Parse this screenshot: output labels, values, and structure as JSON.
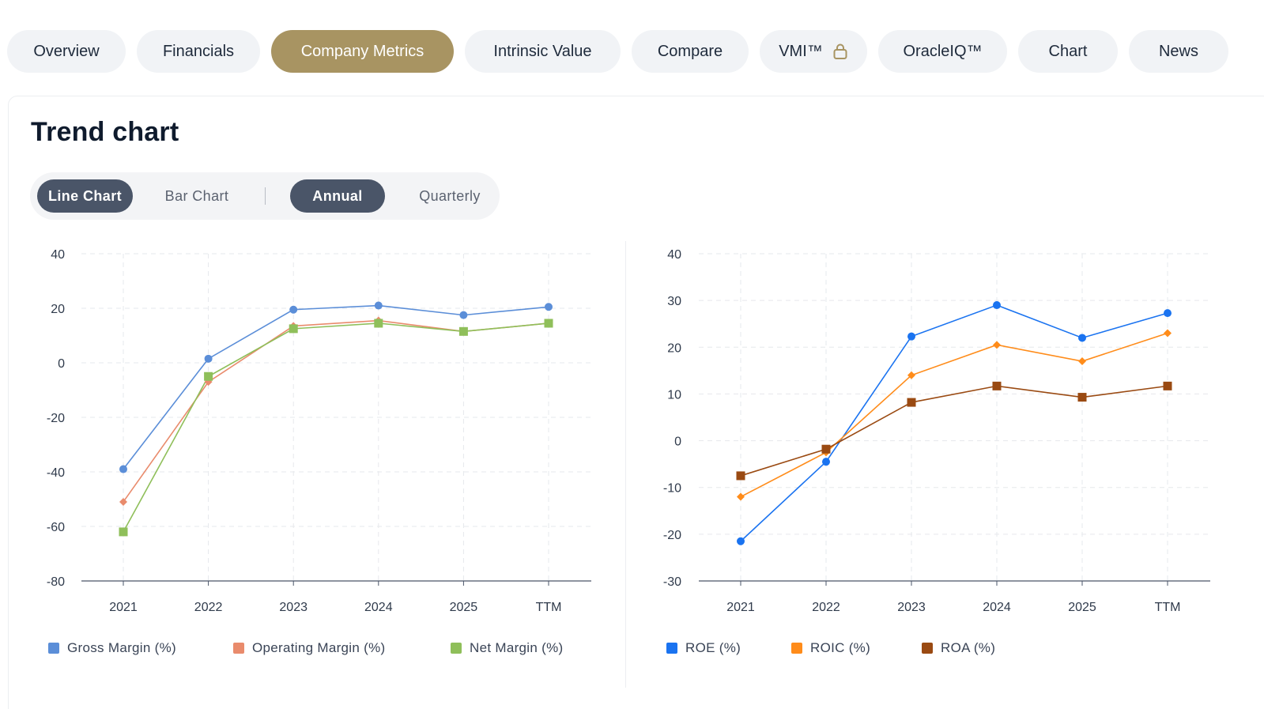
{
  "tabs": [
    {
      "label": "Overview",
      "active": false
    },
    {
      "label": "Financials",
      "active": false
    },
    {
      "label": "Company Metrics",
      "active": true
    },
    {
      "label": "Intrinsic Value",
      "active": false
    },
    {
      "label": "Compare",
      "active": false
    },
    {
      "label": "VMI™",
      "active": false,
      "icon": "lock-icon"
    },
    {
      "label": "OracleIQ™",
      "active": false
    },
    {
      "label": "Chart",
      "active": false
    },
    {
      "label": "News",
      "active": false
    }
  ],
  "section": {
    "title": "Trend chart"
  },
  "toggle": {
    "line_chart": "Line Chart",
    "bar_chart": "Bar Chart",
    "annual": "Annual",
    "quarterly": "Quarterly"
  },
  "colors": {
    "accent": "#a89462",
    "toggle_active": "#4a5568"
  },
  "chart_data": [
    {
      "type": "line",
      "x": [
        "2021",
        "2022",
        "2023",
        "2024",
        "2025",
        "TTM"
      ],
      "ylim": [
        -80,
        40
      ],
      "yticks": [
        40,
        20,
        0,
        -20,
        -40,
        -60,
        -80
      ],
      "grid": true,
      "legend_position": "bottom",
      "series": [
        {
          "name": "Gross Margin (%)",
          "color": "#5b8ed8",
          "marker": "circle",
          "values": [
            -39,
            1.5,
            19.5,
            21,
            17.5,
            20.5
          ]
        },
        {
          "name": "Operating Margin (%)",
          "color": "#e98b6c",
          "marker": "diamond",
          "values": [
            -51,
            -7,
            13.5,
            15.5,
            11.5,
            14.5
          ]
        },
        {
          "name": "Net Margin (%)",
          "color": "#8fbf5a",
          "marker": "square",
          "values": [
            -62,
            -5,
            12.5,
            14.5,
            11.5,
            14.5
          ]
        }
      ]
    },
    {
      "type": "line",
      "x": [
        "2021",
        "2022",
        "2023",
        "2024",
        "2025",
        "TTM"
      ],
      "ylim": [
        -30,
        40
      ],
      "yticks": [
        40,
        30,
        20,
        10,
        0,
        -10,
        -20,
        -30
      ],
      "grid": true,
      "legend_position": "bottom",
      "series": [
        {
          "name": "ROE (%)",
          "color": "#1a73f0",
          "marker": "circle",
          "values": [
            -21.5,
            -4.5,
            22.3,
            29,
            22,
            27.3
          ]
        },
        {
          "name": "ROIC (%)",
          "color": "#ff8c1a",
          "marker": "diamond",
          "values": [
            -12,
            -2.5,
            14,
            20.5,
            17,
            23
          ]
        },
        {
          "name": "ROA (%)",
          "color": "#9a4a12",
          "marker": "square",
          "values": [
            -7.5,
            -1.8,
            8.2,
            11.7,
            9.3,
            11.7
          ]
        }
      ]
    }
  ]
}
